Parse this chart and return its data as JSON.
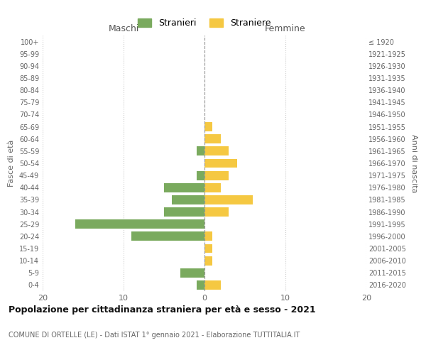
{
  "age_groups": [
    "0-4",
    "5-9",
    "10-14",
    "15-19",
    "20-24",
    "25-29",
    "30-34",
    "35-39",
    "40-44",
    "45-49",
    "50-54",
    "55-59",
    "60-64",
    "65-69",
    "70-74",
    "75-79",
    "80-84",
    "85-89",
    "90-94",
    "95-99",
    "100+"
  ],
  "birth_years": [
    "2016-2020",
    "2011-2015",
    "2006-2010",
    "2001-2005",
    "1996-2000",
    "1991-1995",
    "1986-1990",
    "1981-1985",
    "1976-1980",
    "1971-1975",
    "1966-1970",
    "1961-1965",
    "1956-1960",
    "1951-1955",
    "1946-1950",
    "1941-1945",
    "1936-1940",
    "1931-1935",
    "1926-1930",
    "1921-1925",
    "≤ 1920"
  ],
  "maschi": [
    1,
    3,
    0,
    0,
    9,
    16,
    5,
    4,
    5,
    1,
    0,
    1,
    0,
    0,
    0,
    0,
    0,
    0,
    0,
    0,
    0
  ],
  "femmine": [
    2,
    0,
    1,
    1,
    1,
    0,
    3,
    6,
    2,
    3,
    4,
    3,
    2,
    1,
    0,
    0,
    0,
    0,
    0,
    0,
    0
  ],
  "color_maschi": "#7aaa5e",
  "color_femmine": "#f5c842",
  "title": "Popolazione per cittadinanza straniera per età e sesso - 2021",
  "subtitle": "COMUNE DI ORTELLE (LE) - Dati ISTAT 1° gennaio 2021 - Elaborazione TUTTITALIA.IT",
  "ylabel_left": "Fasce di età",
  "ylabel_right": "Anni di nascita",
  "label_maschi": "Maschi",
  "label_femmine": "Femmine",
  "legend_stranieri": "Stranieri",
  "legend_straniere": "Straniere",
  "xlim": 20,
  "background_color": "#ffffff"
}
